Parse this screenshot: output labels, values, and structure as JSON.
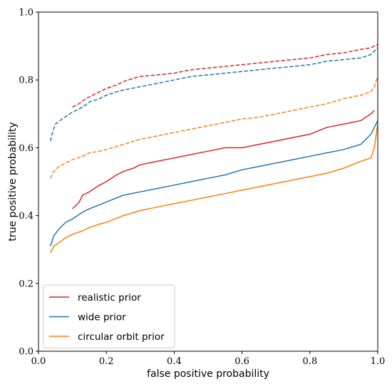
{
  "chart_data": {
    "type": "line",
    "xlabel": "false positive probability",
    "ylabel": "true positive probability",
    "xlim": [
      0,
      1
    ],
    "ylim": [
      0,
      1
    ],
    "x_ticks": [
      "0.0",
      "0.2",
      "0.4",
      "0.6",
      "0.8",
      "1.0"
    ],
    "y_ticks": [
      "0.0",
      "0.2",
      "0.4",
      "0.6",
      "0.8",
      "1.0"
    ],
    "grid": false,
    "legend_position": "bottom-left",
    "series": [
      {
        "name": "realistic prior",
        "color": "#d62728",
        "style": "solid",
        "points": [
          [
            0.1,
            0.42
          ],
          [
            0.12,
            0.44
          ],
          [
            0.13,
            0.46
          ],
          [
            0.15,
            0.47
          ],
          [
            0.18,
            0.49
          ],
          [
            0.2,
            0.5
          ],
          [
            0.23,
            0.52
          ],
          [
            0.25,
            0.53
          ],
          [
            0.28,
            0.54
          ],
          [
            0.3,
            0.55
          ],
          [
            0.35,
            0.56
          ],
          [
            0.4,
            0.57
          ],
          [
            0.45,
            0.58
          ],
          [
            0.5,
            0.59
          ],
          [
            0.55,
            0.6
          ],
          [
            0.6,
            0.6
          ],
          [
            0.65,
            0.61
          ],
          [
            0.7,
            0.62
          ],
          [
            0.75,
            0.63
          ],
          [
            0.8,
            0.64
          ],
          [
            0.85,
            0.66
          ],
          [
            0.9,
            0.67
          ],
          [
            0.95,
            0.68
          ],
          [
            0.98,
            0.7
          ],
          [
            0.99,
            0.71
          ]
        ]
      },
      {
        "name": "wide prior",
        "color": "#1f77b4",
        "style": "solid",
        "points": [
          [
            0.035,
            0.31
          ],
          [
            0.045,
            0.34
          ],
          [
            0.06,
            0.36
          ],
          [
            0.08,
            0.38
          ],
          [
            0.1,
            0.39
          ],
          [
            0.13,
            0.41
          ],
          [
            0.15,
            0.42
          ],
          [
            0.2,
            0.44
          ],
          [
            0.25,
            0.46
          ],
          [
            0.3,
            0.47
          ],
          [
            0.35,
            0.48
          ],
          [
            0.4,
            0.49
          ],
          [
            0.45,
            0.5
          ],
          [
            0.5,
            0.51
          ],
          [
            0.55,
            0.52
          ],
          [
            0.6,
            0.535
          ],
          [
            0.65,
            0.545
          ],
          [
            0.7,
            0.555
          ],
          [
            0.75,
            0.565
          ],
          [
            0.8,
            0.575
          ],
          [
            0.85,
            0.585
          ],
          [
            0.9,
            0.595
          ],
          [
            0.95,
            0.61
          ],
          [
            0.98,
            0.64
          ],
          [
            0.99,
            0.66
          ],
          [
            1.0,
            0.68
          ]
        ]
      },
      {
        "name": "circular orbit prior",
        "color": "#ff7f0e",
        "style": "solid",
        "points": [
          [
            0.035,
            0.29
          ],
          [
            0.045,
            0.31
          ],
          [
            0.06,
            0.32
          ],
          [
            0.08,
            0.335
          ],
          [
            0.1,
            0.345
          ],
          [
            0.13,
            0.355
          ],
          [
            0.15,
            0.365
          ],
          [
            0.18,
            0.375
          ],
          [
            0.2,
            0.38
          ],
          [
            0.25,
            0.4
          ],
          [
            0.3,
            0.415
          ],
          [
            0.35,
            0.425
          ],
          [
            0.4,
            0.435
          ],
          [
            0.45,
            0.445
          ],
          [
            0.5,
            0.455
          ],
          [
            0.55,
            0.465
          ],
          [
            0.6,
            0.475
          ],
          [
            0.65,
            0.485
          ],
          [
            0.7,
            0.495
          ],
          [
            0.75,
            0.505
          ],
          [
            0.8,
            0.515
          ],
          [
            0.85,
            0.525
          ],
          [
            0.9,
            0.54
          ],
          [
            0.95,
            0.56
          ],
          [
            0.98,
            0.57
          ],
          [
            0.99,
            0.6
          ],
          [
            1.0,
            0.67
          ]
        ]
      },
      {
        "color": "#d62728",
        "style": "dashed",
        "points": [
          [
            0.1,
            0.72
          ],
          [
            0.12,
            0.73
          ],
          [
            0.14,
            0.745
          ],
          [
            0.16,
            0.755
          ],
          [
            0.18,
            0.765
          ],
          [
            0.2,
            0.775
          ],
          [
            0.23,
            0.785
          ],
          [
            0.25,
            0.795
          ],
          [
            0.28,
            0.805
          ],
          [
            0.3,
            0.81
          ],
          [
            0.35,
            0.815
          ],
          [
            0.4,
            0.82
          ],
          [
            0.45,
            0.83
          ],
          [
            0.5,
            0.835
          ],
          [
            0.55,
            0.84
          ],
          [
            0.6,
            0.845
          ],
          [
            0.65,
            0.85
          ],
          [
            0.7,
            0.855
          ],
          [
            0.75,
            0.86
          ],
          [
            0.8,
            0.865
          ],
          [
            0.85,
            0.875
          ],
          [
            0.9,
            0.88
          ],
          [
            0.95,
            0.89
          ],
          [
            0.98,
            0.895
          ],
          [
            1.0,
            0.905
          ]
        ]
      },
      {
        "color": "#1f77b4",
        "style": "dashed",
        "points": [
          [
            0.035,
            0.62
          ],
          [
            0.04,
            0.64
          ],
          [
            0.05,
            0.67
          ],
          [
            0.07,
            0.685
          ],
          [
            0.1,
            0.705
          ],
          [
            0.13,
            0.72
          ],
          [
            0.15,
            0.735
          ],
          [
            0.18,
            0.745
          ],
          [
            0.2,
            0.755
          ],
          [
            0.23,
            0.765
          ],
          [
            0.25,
            0.77
          ],
          [
            0.3,
            0.78
          ],
          [
            0.35,
            0.79
          ],
          [
            0.4,
            0.8
          ],
          [
            0.45,
            0.81
          ],
          [
            0.5,
            0.815
          ],
          [
            0.55,
            0.82
          ],
          [
            0.6,
            0.825
          ],
          [
            0.65,
            0.83
          ],
          [
            0.7,
            0.835
          ],
          [
            0.75,
            0.84
          ],
          [
            0.8,
            0.845
          ],
          [
            0.85,
            0.855
          ],
          [
            0.9,
            0.86
          ],
          [
            0.95,
            0.865
          ],
          [
            0.98,
            0.875
          ],
          [
            0.99,
            0.885
          ],
          [
            1.0,
            0.895
          ]
        ]
      },
      {
        "color": "#ff7f0e",
        "style": "dashed",
        "points": [
          [
            0.035,
            0.51
          ],
          [
            0.045,
            0.53
          ],
          [
            0.06,
            0.545
          ],
          [
            0.08,
            0.555
          ],
          [
            0.1,
            0.565
          ],
          [
            0.13,
            0.575
          ],
          [
            0.15,
            0.585
          ],
          [
            0.18,
            0.59
          ],
          [
            0.2,
            0.595
          ],
          [
            0.25,
            0.61
          ],
          [
            0.3,
            0.625
          ],
          [
            0.35,
            0.635
          ],
          [
            0.4,
            0.645
          ],
          [
            0.45,
            0.655
          ],
          [
            0.5,
            0.665
          ],
          [
            0.55,
            0.675
          ],
          [
            0.6,
            0.685
          ],
          [
            0.65,
            0.69
          ],
          [
            0.7,
            0.7
          ],
          [
            0.75,
            0.71
          ],
          [
            0.8,
            0.72
          ],
          [
            0.85,
            0.73
          ],
          [
            0.9,
            0.745
          ],
          [
            0.95,
            0.755
          ],
          [
            0.98,
            0.765
          ],
          [
            0.99,
            0.78
          ],
          [
            1.0,
            0.81
          ]
        ]
      }
    ]
  }
}
